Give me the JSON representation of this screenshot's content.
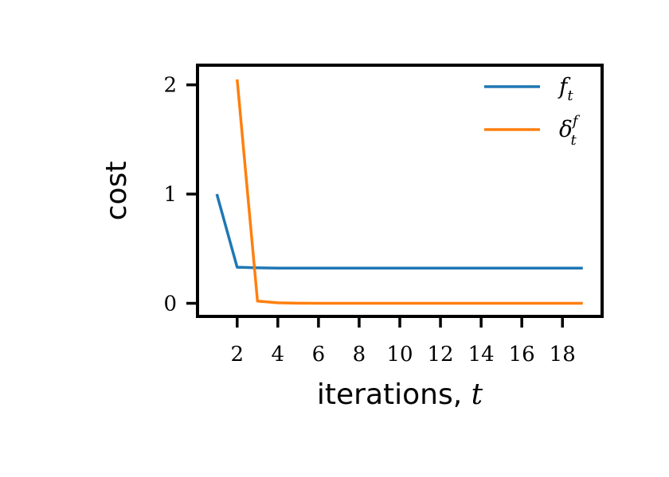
{
  "chart_data": {
    "type": "line",
    "xlabel": "iterations, t",
    "ylabel": "cost",
    "xlim": [
      0.05,
      19.95
    ],
    "ylim": [
      -0.12,
      2.18
    ],
    "x_ticks": [
      2,
      4,
      6,
      8,
      10,
      12,
      14,
      16,
      18
    ],
    "y_ticks": [
      0,
      1,
      2
    ],
    "grid": false,
    "legend_position": "top-right",
    "series": [
      {
        "name": "f_t",
        "color": "#1f77b4",
        "x": [
          1,
          2,
          3,
          4,
          5,
          6,
          7,
          8,
          9,
          10,
          11,
          12,
          13,
          14,
          15,
          16,
          17,
          18,
          19
        ],
        "y": [
          1.0,
          0.33,
          0.325,
          0.322,
          0.322,
          0.322,
          0.322,
          0.322,
          0.322,
          0.322,
          0.322,
          0.322,
          0.322,
          0.322,
          0.322,
          0.322,
          0.322,
          0.322,
          0.322
        ]
      },
      {
        "name": "δ_t^f",
        "color": "#ff7f0e",
        "x": [
          2,
          3,
          4,
          5,
          6,
          7,
          8,
          9,
          10,
          11,
          12,
          13,
          14,
          15,
          16,
          17,
          18,
          19
        ],
        "y": [
          2.05,
          0.02,
          0.005,
          0.001,
          0.0,
          0.0,
          0.0,
          0.0,
          0.0,
          0.0,
          0.0,
          0.0,
          0.0,
          0.0,
          0.0,
          0.0,
          0.0,
          0.0
        ]
      }
    ]
  }
}
